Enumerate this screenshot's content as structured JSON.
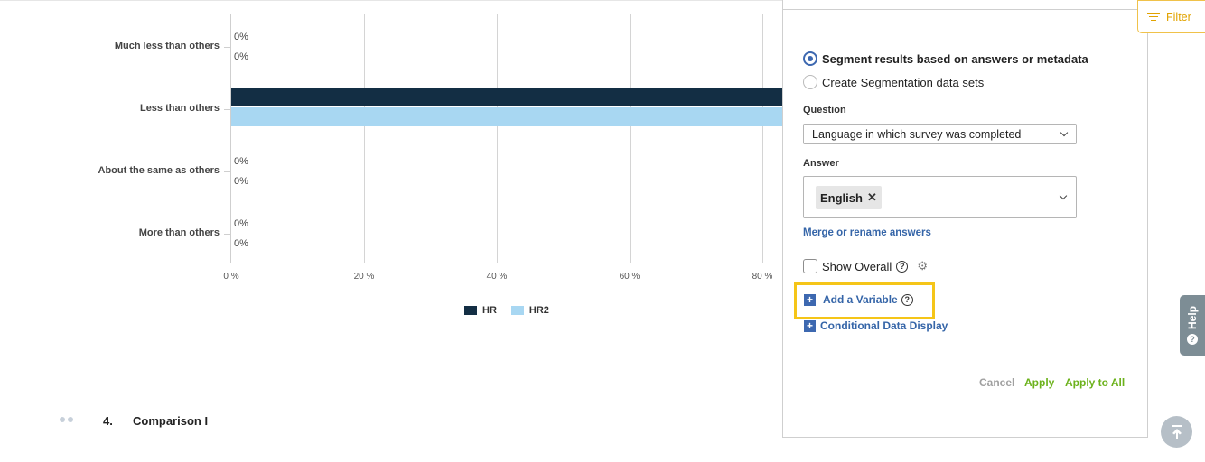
{
  "chart_data": {
    "type": "bar",
    "orientation": "horizontal",
    "categories": [
      "Much less than others",
      "Less than others",
      "About the same as others",
      "More than others"
    ],
    "series": [
      {
        "name": "HR",
        "color": "#132e44",
        "values": [
          0,
          100,
          0,
          0
        ]
      },
      {
        "name": "HR2",
        "color": "#a8d7f2",
        "values": [
          0,
          100,
          0,
          0
        ]
      }
    ],
    "value_labels": [
      [
        "0%",
        "0%"
      ],
      [
        "",
        ""
      ],
      [
        "0%",
        "0%"
      ],
      [
        "0%",
        "0%"
      ]
    ],
    "x_ticks": [
      "0 %",
      "20 %",
      "40 %",
      "60 %",
      "80 %"
    ],
    "xlim": [
      0,
      100
    ],
    "grid": true,
    "legend": "bottom"
  },
  "section": {
    "number": "4.",
    "title": "Comparison I"
  },
  "panel": {
    "radio_segment": "Segment results based on answers or metadata",
    "radio_datasets": "Create Segmentation data sets",
    "question_label": "Question",
    "question_value": "Language in which survey was completed",
    "answer_label": "Answer",
    "answer_chip": "English",
    "merge_link": "Merge or rename answers",
    "show_overall": "Show Overall",
    "add_variable": "Add a Variable",
    "conditional_display": "Conditional Data Display",
    "cancel": "Cancel",
    "apply": "Apply",
    "apply_all": "Apply to All"
  },
  "filter_label": "Filter",
  "help_label": "Help",
  "icons": {
    "filter": "filter-lines-icon",
    "help": "help-circle-icon",
    "gear": "gear-icon",
    "close": "close-x-icon",
    "chevron": "chevron-down-icon",
    "scroll_top": "arrow-up-to-top-icon"
  }
}
